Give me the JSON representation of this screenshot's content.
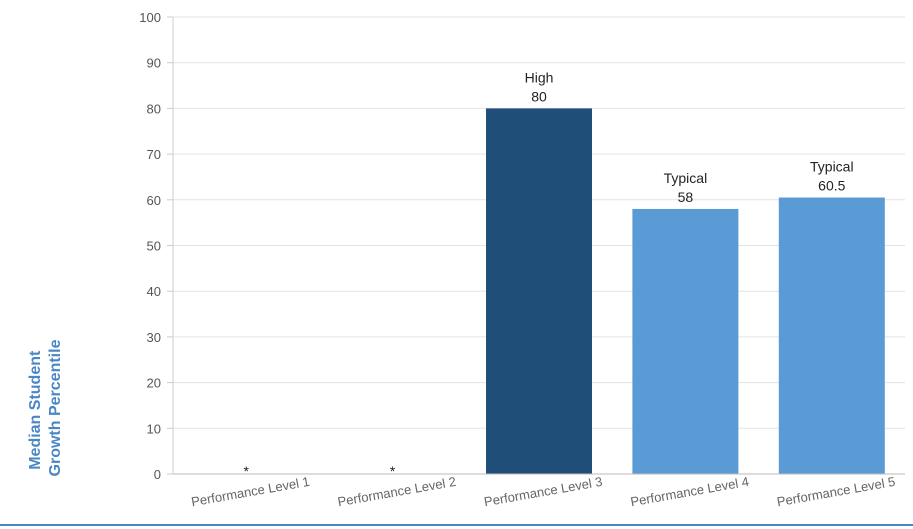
{
  "chart_data": {
    "type": "bar",
    "ylabel": "Median Student Growth Percentile",
    "ylabel_lines": [
      "Median Student",
      "Growth Percentile"
    ],
    "ylim": [
      0,
      100
    ],
    "yticks": [
      0,
      10,
      20,
      30,
      40,
      50,
      60,
      70,
      80,
      90,
      100
    ],
    "grid": true,
    "categories": [
      "Performance Level 1",
      "Performance Level 2",
      "Performance Level 3",
      "Performance Level 4",
      "Performance Level 5"
    ],
    "values": [
      null,
      null,
      80,
      58,
      60.5
    ],
    "data_labels": [
      {
        "lines": [
          "*"
        ]
      },
      {
        "lines": [
          "*"
        ]
      },
      {
        "lines": [
          "High",
          "80"
        ]
      },
      {
        "lines": [
          "Typical",
          "58"
        ]
      },
      {
        "lines": [
          "Typical",
          "60.5"
        ]
      }
    ],
    "colors": [
      "#5b9bd5",
      "#5b9bd5",
      "#1f4e79",
      "#5b9bd5",
      "#5b9bd5"
    ],
    "axis_color": "#4a86c5",
    "grid_color": "#e3e3e3",
    "bottom_rule_color": "#4a86c5"
  }
}
